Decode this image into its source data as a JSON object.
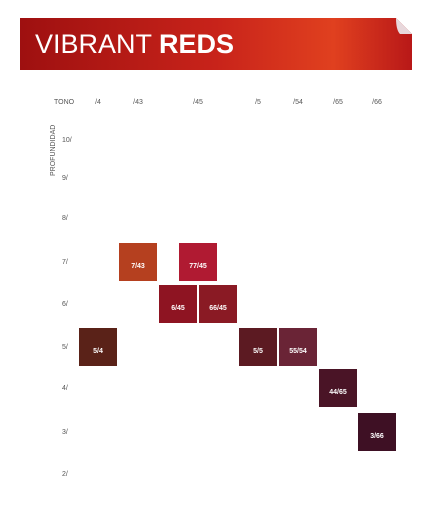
{
  "header": {
    "title_light": "VIBRANT",
    "title_bold": "REDS"
  },
  "axes": {
    "tone_label": "TONO",
    "depth_label": "PROFUNDIDAD"
  },
  "columns": [
    "/4",
    "/43",
    "/45",
    "/5",
    "/54",
    "/65",
    "/66"
  ],
  "rows": [
    {
      "label": "10/",
      "swatches": []
    },
    {
      "label": "9/",
      "swatches": []
    },
    {
      "label": "8/",
      "swatches": []
    },
    {
      "label": "7/",
      "swatches": [
        {
          "label": "7/43",
          "color": "#b5401f"
        },
        {
          "label": "77/45",
          "color": "#b01a32"
        }
      ]
    },
    {
      "label": "6/",
      "swatches": [
        {
          "label": "6/45",
          "color": "#8e1422"
        },
        {
          "label": "66/45",
          "color": "#8a1a24"
        }
      ]
    },
    {
      "label": "5/",
      "swatches": [
        {
          "label": "5/4",
          "color": "#5a2218"
        },
        {
          "label": "5/5",
          "color": "#5c1a22"
        },
        {
          "label": "55/54",
          "color": "#6a2436"
        }
      ]
    },
    {
      "label": "4/",
      "swatches": [
        {
          "label": "44/65",
          "color": "#4a1426"
        }
      ]
    },
    {
      "label": "3/",
      "swatches": [
        {
          "label": "3/66",
          "color": "#3e1024"
        }
      ]
    },
    {
      "label": "2/",
      "swatches": []
    }
  ]
}
